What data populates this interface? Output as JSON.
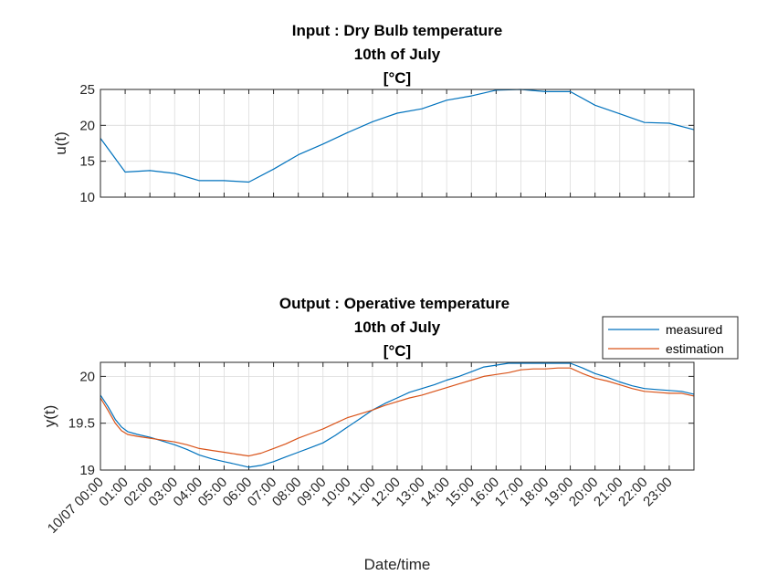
{
  "chart_data": [
    {
      "type": "line",
      "title": [
        "Input : Dry Bulb temperature",
        "10th of July",
        "[°C]"
      ],
      "xlabel": "",
      "ylabel": "u(t)",
      "x": [
        0,
        1,
        2,
        3,
        4,
        5,
        6,
        7,
        8,
        9,
        10,
        11,
        12,
        13,
        14,
        15,
        16,
        17,
        18,
        19,
        20,
        21,
        22,
        23,
        24
      ],
      "x_unit": "hours after 10/07 00:00",
      "ylim": [
        10,
        25
      ],
      "yticks": [
        10,
        15,
        20,
        25
      ],
      "grid": true,
      "series": [
        {
          "name": "",
          "color": "#0072BD",
          "values": [
            18.2,
            13.5,
            13.7,
            13.3,
            12.3,
            12.3,
            12.1,
            13.9,
            15.9,
            17.4,
            19.0,
            20.5,
            21.7,
            22.3,
            23.5,
            24.1,
            24.9,
            25.0,
            24.7,
            24.7,
            22.8,
            21.6,
            20.4,
            20.3,
            19.4
          ]
        }
      ]
    },
    {
      "type": "line",
      "title": [
        "Output :  Operative temperature",
        "10th of July",
        "[°C]"
      ],
      "xlabel": "Date/time",
      "ylabel": "y(t)",
      "ylim": [
        19,
        20.15
      ],
      "yticks": [
        19,
        19.5,
        20
      ],
      "grid": true,
      "xtick_labels": [
        "10/07 00:00",
        "01:00",
        "02:00",
        "03:00",
        "04:00",
        "05:00",
        "06:00",
        "07:00",
        "08:00",
        "09:00",
        "10:00",
        "11:00",
        "12:00",
        "13:00",
        "14:00",
        "15:00",
        "16:00",
        "17:00",
        "18:00",
        "19:00",
        "20:00",
        "21:00",
        "22:00",
        "23:00"
      ],
      "legend_position": "top-right",
      "series": [
        {
          "name": "measured",
          "color": "#0072BD",
          "x": [
            0,
            0.3,
            0.6,
            0.85,
            1.1,
            1.5,
            2,
            2.5,
            3,
            3.5,
            4,
            4.5,
            5,
            5.5,
            6,
            6.5,
            7,
            7.5,
            8,
            8.5,
            9,
            9.5,
            10,
            10.5,
            11,
            11.5,
            12,
            12.5,
            13,
            13.5,
            14,
            14.5,
            15,
            15.5,
            16,
            16.5,
            17,
            17.5,
            18,
            18.5,
            19,
            19.5,
            20,
            20.5,
            21,
            21.5,
            22,
            22.5,
            23,
            23.5,
            24
          ],
          "values": [
            19.8,
            19.68,
            19.54,
            19.46,
            19.41,
            19.38,
            19.35,
            19.31,
            19.27,
            19.22,
            19.16,
            19.12,
            19.09,
            19.06,
            19.03,
            19.05,
            19.09,
            19.14,
            19.19,
            19.24,
            19.29,
            19.37,
            19.46,
            19.55,
            19.64,
            19.71,
            19.77,
            19.83,
            19.87,
            19.91,
            19.96,
            20.0,
            20.05,
            20.1,
            20.12,
            20.14,
            20.14,
            20.14,
            20.14,
            20.14,
            20.14,
            20.09,
            20.03,
            19.99,
            19.94,
            19.9,
            19.87,
            19.86,
            19.85,
            19.84,
            19.81
          ]
        },
        {
          "name": "estimation",
          "color": "#D95319",
          "x": [
            0,
            0.3,
            0.6,
            0.85,
            1.1,
            1.5,
            2,
            2.5,
            3,
            3.5,
            4,
            4.5,
            5,
            5.5,
            6,
            6.5,
            7,
            7.5,
            8,
            8.5,
            9,
            9.5,
            10,
            10.5,
            11,
            11.5,
            12,
            12.5,
            13,
            13.5,
            14,
            14.5,
            15,
            15.5,
            16,
            16.5,
            17,
            17.5,
            18,
            18.5,
            19,
            19.5,
            20,
            20.5,
            21,
            21.5,
            22,
            22.5,
            23,
            23.5,
            24
          ],
          "values": [
            19.77,
            19.64,
            19.5,
            19.42,
            19.38,
            19.36,
            19.34,
            19.32,
            19.3,
            19.27,
            19.23,
            19.21,
            19.19,
            19.17,
            19.15,
            19.18,
            19.23,
            19.28,
            19.34,
            19.39,
            19.44,
            19.5,
            19.56,
            19.6,
            19.64,
            19.69,
            19.73,
            19.77,
            19.8,
            19.84,
            19.88,
            19.92,
            19.96,
            20.0,
            20.02,
            20.04,
            20.07,
            20.08,
            20.08,
            20.09,
            20.09,
            20.03,
            19.98,
            19.95,
            19.91,
            19.87,
            19.84,
            19.83,
            19.82,
            19.82,
            19.79
          ]
        }
      ]
    }
  ]
}
